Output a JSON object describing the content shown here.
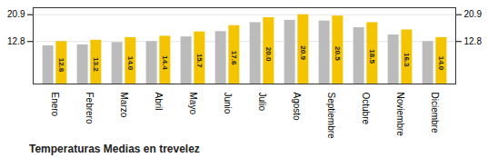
{
  "chart_data": {
    "type": "bar",
    "title": "Temperaturas Medias en trevelez",
    "categories": [
      "Enero",
      "Febrero",
      "Marzo",
      "Abril",
      "Mayo",
      "Junio",
      "Julio",
      "Agosto",
      "Septiembre",
      "Octubre",
      "Noviembre",
      "Diciembre"
    ],
    "series": [
      {
        "color": "#BBBBBB",
        "values": [
          11.5,
          11.8,
          12.5,
          12.8,
          14.2,
          15.8,
          18.5,
          19.2,
          19.0,
          17.0,
          14.8,
          12.8
        ]
      },
      {
        "color": "#F5C400",
        "values": [
          12.8,
          13.2,
          14.0,
          14.4,
          15.7,
          17.6,
          20.0,
          20.9,
          20.5,
          18.5,
          16.3,
          14.0
        ],
        "data_labels": true,
        "value_labels": [
          "12.8",
          "13.2",
          "14.0",
          "14.4",
          "15.7",
          "17.6",
          "20.0",
          "20.9",
          "20.5",
          "18.5",
          "16.3",
          "14.0"
        ]
      }
    ],
    "ylim": [
      0,
      23.0
    ],
    "yticks": [
      12.8,
      20.9
    ],
    "grid": true
  }
}
